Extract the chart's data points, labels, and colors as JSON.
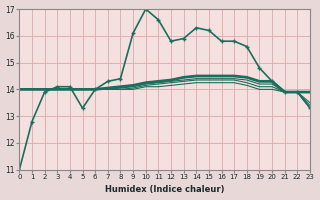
{
  "xlabel": "Humidex (Indice chaleur)",
  "fig_background_color": "#e8d8d8",
  "plot_background_color": "#f5e0e0",
  "grid_color": "#e0b0b0",
  "line_color": "#1a6e5e",
  "xlim": [
    0,
    23
  ],
  "ylim": [
    11,
    17
  ],
  "yticks": [
    11,
    12,
    13,
    14,
    15,
    16,
    17
  ],
  "xticks": [
    0,
    1,
    2,
    3,
    4,
    5,
    6,
    7,
    8,
    9,
    10,
    11,
    12,
    13,
    14,
    15,
    16,
    17,
    18,
    19,
    20,
    21,
    22,
    23
  ],
  "series": [
    {
      "x": [
        0,
        1,
        2,
        3,
        4,
        5,
        6,
        7,
        8,
        9,
        10,
        11,
        12,
        13,
        14,
        15,
        16,
        17,
        18,
        19,
        20,
        21,
        22,
        23
      ],
      "y": [
        11.0,
        12.8,
        13.9,
        14.1,
        14.1,
        13.3,
        14.0,
        14.3,
        14.4,
        16.1,
        17.0,
        16.6,
        15.8,
        15.9,
        16.3,
        16.2,
        15.8,
        15.8,
        15.6,
        14.8,
        14.3,
        13.9,
        13.9,
        13.3
      ],
      "marker": "+",
      "linestyle": "-",
      "linewidth": 1.2
    },
    {
      "x": [
        0,
        1,
        2,
        3,
        4,
        5,
        6,
        7,
        8,
        9,
        10,
        11,
        12,
        13,
        14,
        15,
        16,
        17,
        18,
        19,
        20,
        21,
        22,
        23
      ],
      "y": [
        14.0,
        14.0,
        14.0,
        14.0,
        14.0,
        14.0,
        14.0,
        14.05,
        14.1,
        14.15,
        14.25,
        14.3,
        14.35,
        14.45,
        14.5,
        14.5,
        14.5,
        14.5,
        14.45,
        14.3,
        14.3,
        13.9,
        13.9,
        13.9
      ],
      "marker": null,
      "linestyle": "-",
      "linewidth": 2.0
    },
    {
      "x": [
        0,
        1,
        2,
        3,
        4,
        5,
        6,
        7,
        8,
        9,
        10,
        11,
        12,
        13,
        14,
        15,
        16,
        17,
        18,
        19,
        20,
        21,
        22,
        23
      ],
      "y": [
        14.0,
        14.0,
        14.0,
        14.0,
        14.0,
        14.0,
        14.0,
        14.0,
        14.05,
        14.1,
        14.2,
        14.25,
        14.3,
        14.35,
        14.4,
        14.4,
        14.4,
        14.4,
        14.35,
        14.2,
        14.2,
        13.9,
        13.9,
        13.5
      ],
      "marker": null,
      "linestyle": "-",
      "linewidth": 0.8
    },
    {
      "x": [
        0,
        1,
        2,
        3,
        4,
        5,
        6,
        7,
        8,
        9,
        10,
        11,
        12,
        13,
        14,
        15,
        16,
        17,
        18,
        19,
        20,
        21,
        22,
        23
      ],
      "y": [
        14.0,
        14.0,
        14.0,
        14.0,
        14.0,
        14.0,
        14.0,
        14.0,
        14.0,
        14.05,
        14.15,
        14.2,
        14.25,
        14.3,
        14.35,
        14.35,
        14.35,
        14.35,
        14.25,
        14.1,
        14.1,
        13.9,
        13.9,
        13.4
      ],
      "marker": null,
      "linestyle": "-",
      "linewidth": 0.8
    },
    {
      "x": [
        0,
        1,
        2,
        3,
        4,
        5,
        6,
        7,
        8,
        9,
        10,
        11,
        12,
        13,
        14,
        15,
        16,
        17,
        18,
        19,
        20,
        21,
        22,
        23
      ],
      "y": [
        14.0,
        14.0,
        14.0,
        14.0,
        14.0,
        14.0,
        14.0,
        14.0,
        14.0,
        14.0,
        14.1,
        14.1,
        14.15,
        14.2,
        14.25,
        14.25,
        14.25,
        14.25,
        14.15,
        14.0,
        14.0,
        13.9,
        13.9,
        13.3
      ],
      "marker": null,
      "linestyle": "-",
      "linewidth": 0.8
    }
  ]
}
